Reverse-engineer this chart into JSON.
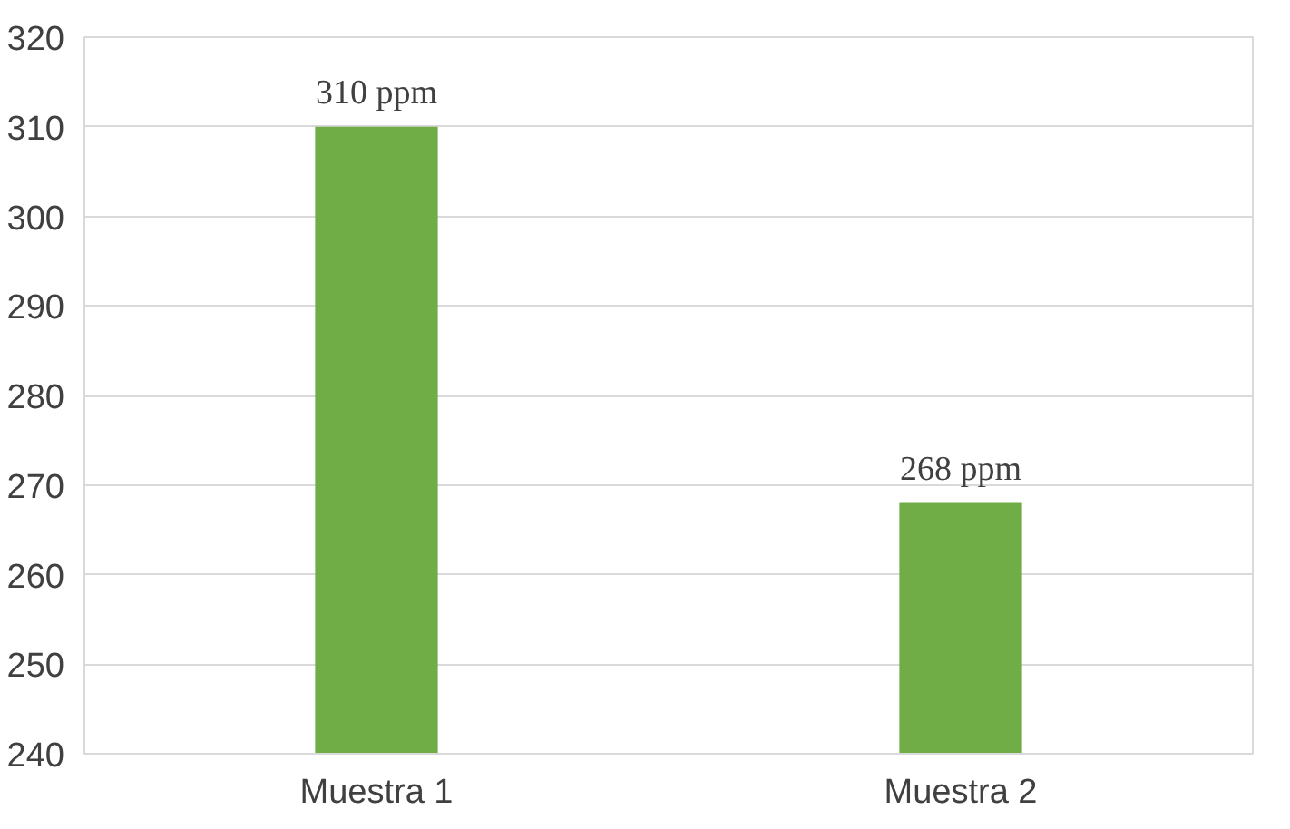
{
  "chart_data": {
    "type": "bar",
    "categories": [
      "Muestra 1",
      "Muestra 2"
    ],
    "values": [
      310,
      268
    ],
    "value_labels": [
      "310 ppm",
      "268 ppm"
    ],
    "color": "#70ad47",
    "ylim": [
      240,
      320
    ],
    "yticks": [
      240,
      250,
      260,
      270,
      280,
      290,
      300,
      310,
      320
    ],
    "grid": "y"
  }
}
